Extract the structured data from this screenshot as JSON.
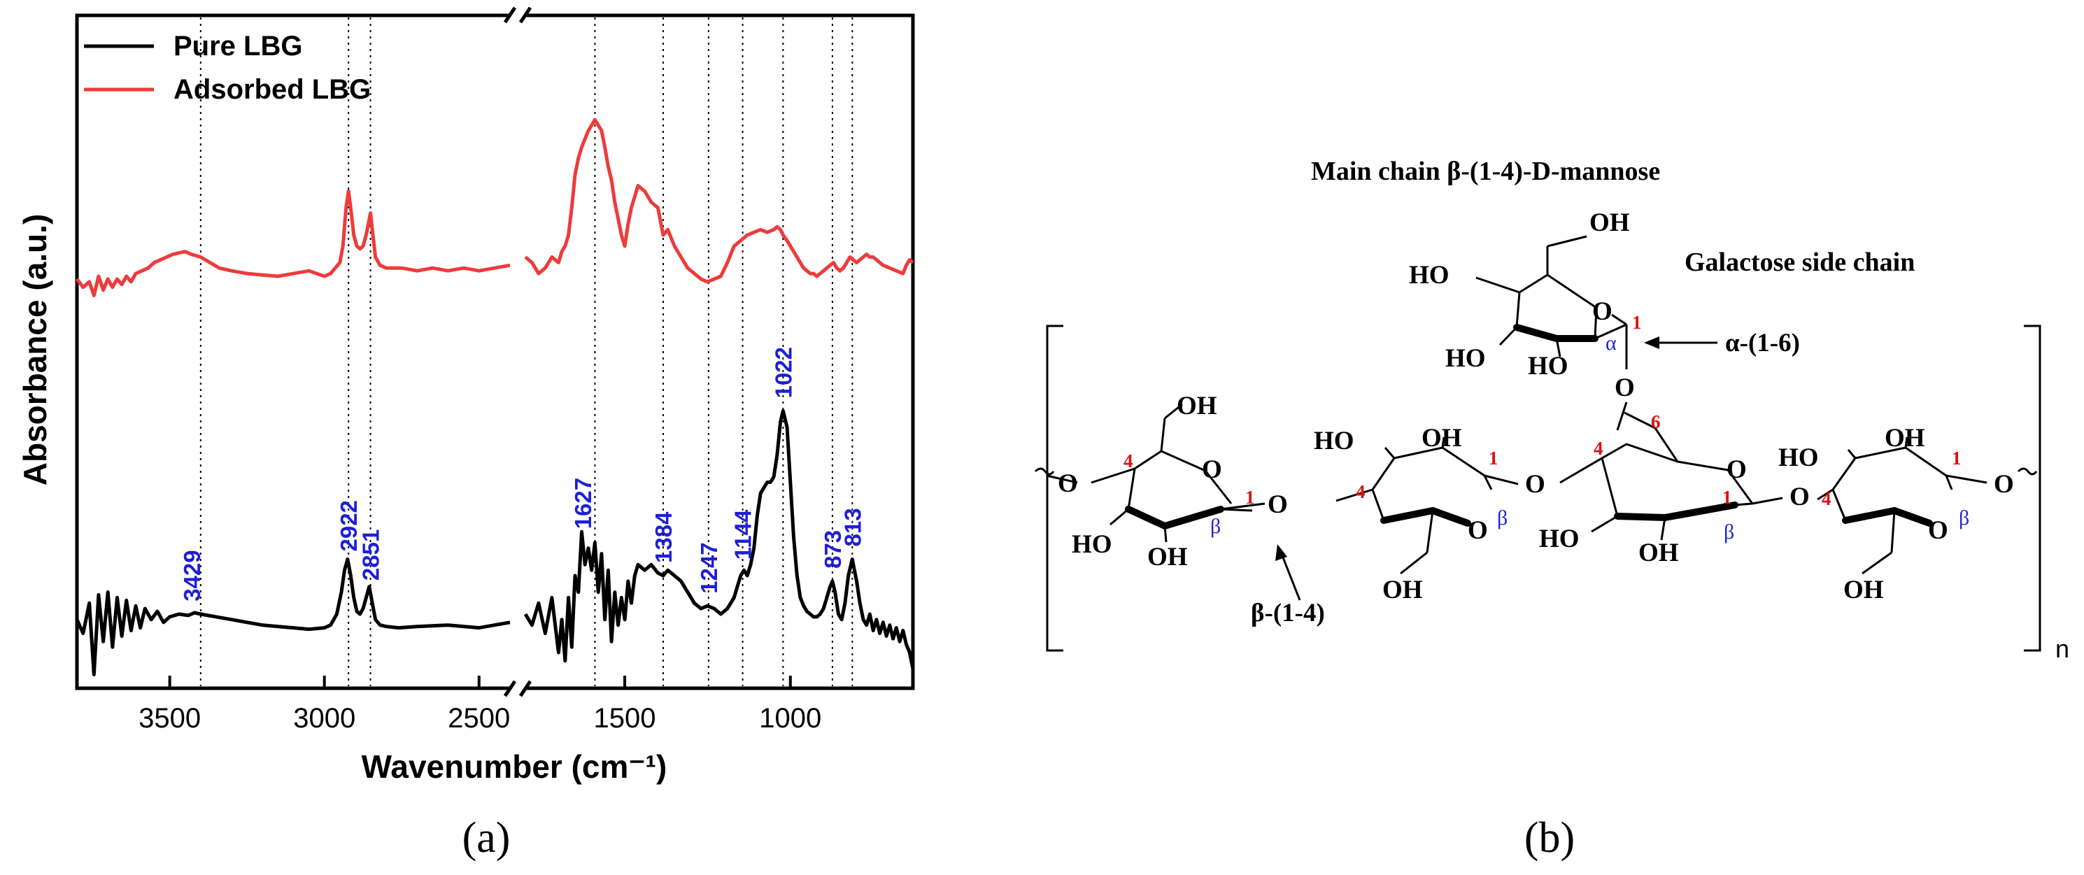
{
  "chart_data": {
    "type": "line",
    "title": "",
    "xlabel": "Wavenumber (cm⁻¹)",
    "ylabel": "Absorbance (a.u.)",
    "xlim": [
      3800,
      630
    ],
    "axis_break": [
      2400,
      1800
    ],
    "xticks": [
      {
        "value": 3500,
        "label": "3500"
      },
      {
        "value": 3000,
        "label": "3000"
      },
      {
        "value": 2500,
        "label": "2500"
      },
      {
        "value": 1500,
        "label": "1500"
      },
      {
        "value": 1000,
        "label": "1000"
      }
    ],
    "legend": {
      "position": "top-left",
      "items": [
        "Pure LBG",
        "Adsorbed LBG"
      ]
    },
    "colors": {
      "pure": "#000000",
      "adsorbed": "#ee3b3b",
      "peak_label": "#1f1fd6"
    },
    "reference_lines": [
      3400,
      2922,
      2851,
      1590,
      1384,
      1247,
      1144,
      1022,
      873,
      813
    ],
    "peaks": [
      {
        "x": 3429,
        "label": "3429"
      },
      {
        "x": 2922,
        "label": "2922"
      },
      {
        "x": 2851,
        "label": "2851"
      },
      {
        "x": 1627,
        "label": "1627"
      },
      {
        "x": 1384,
        "label": "1384"
      },
      {
        "x": 1247,
        "label": "1247"
      },
      {
        "x": 1144,
        "label": "1144"
      },
      {
        "x": 1022,
        "label": "1022"
      },
      {
        "x": 873,
        "label": "873"
      },
      {
        "x": 813,
        "label": "813"
      }
    ],
    "series": [
      {
        "name": "Pure LBG",
        "color": "#000000",
        "segments": [
          {
            "x": [
              3800,
              3780,
              3760,
              3745,
              3730,
              3715,
              3700,
              3685,
              3670,
              3655,
              3640,
              3625,
              3610,
              3595,
              3580,
              3560,
              3540,
              3520,
              3500,
              3470,
              3440,
              3420,
              3400,
              3350,
              3300,
              3250,
              3200,
              3150,
              3100,
              3050,
              3000,
              2980,
              2960,
              2945,
              2935,
              2925,
              2915,
              2905,
              2895,
              2885,
              2875,
              2865,
              2855,
              2845,
              2835,
              2820,
              2800,
              2760,
              2700,
              2600,
              2500,
              2400
            ],
            "y": [
              0.2,
              0.15,
              0.26,
              0.0,
              0.29,
              0.12,
              0.3,
              0.1,
              0.28,
              0.14,
              0.27,
              0.16,
              0.25,
              0.17,
              0.24,
              0.2,
              0.23,
              0.19,
              0.21,
              0.22,
              0.215,
              0.225,
              0.22,
              0.21,
              0.2,
              0.19,
              0.18,
              0.175,
              0.17,
              0.165,
              0.17,
              0.18,
              0.22,
              0.3,
              0.38,
              0.42,
              0.36,
              0.28,
              0.23,
              0.22,
              0.24,
              0.28,
              0.32,
              0.26,
              0.2,
              0.18,
              0.175,
              0.17,
              0.175,
              0.18,
              0.17,
              0.19
            ]
          },
          {
            "x": [
              1800,
              1780,
              1760,
              1740,
              1720,
              1700,
              1690,
              1680,
              1670,
              1660,
              1650,
              1640,
              1630,
              1620,
              1610,
              1600,
              1590,
              1580,
              1570,
              1560,
              1550,
              1540,
              1530,
              1520,
              1510,
              1500,
              1490,
              1480,
              1470,
              1460,
              1440,
              1420,
              1400,
              1384,
              1370,
              1350,
              1330,
              1310,
              1290,
              1270,
              1250,
              1230,
              1210,
              1190,
              1170,
              1160,
              1150,
              1140,
              1130,
              1120,
              1110,
              1100,
              1090,
              1080,
              1070,
              1060,
              1050,
              1040,
              1030,
              1022,
              1010,
              1000,
              990,
              980,
              970,
              960,
              950,
              940,
              930,
              920,
              910,
              900,
              890,
              880,
              873,
              865,
              855,
              845,
              835,
              825,
              813,
              800,
              790,
              780,
              770,
              760,
              750,
              740,
              730,
              720,
              710,
              700,
              690,
              680,
              670,
              660,
              650,
              640,
              630
            ],
            "y": [
              0.22,
              0.18,
              0.26,
              0.15,
              0.28,
              0.08,
              0.2,
              0.05,
              0.28,
              0.1,
              0.36,
              0.3,
              0.52,
              0.4,
              0.46,
              0.38,
              0.48,
              0.3,
              0.44,
              0.2,
              0.38,
              0.12,
              0.3,
              0.18,
              0.28,
              0.2,
              0.34,
              0.26,
              0.36,
              0.4,
              0.38,
              0.4,
              0.37,
              0.36,
              0.38,
              0.36,
              0.34,
              0.3,
              0.26,
              0.24,
              0.25,
              0.24,
              0.22,
              0.24,
              0.28,
              0.32,
              0.36,
              0.38,
              0.36,
              0.4,
              0.46,
              0.58,
              0.66,
              0.68,
              0.7,
              0.7,
              0.72,
              0.8,
              0.92,
              0.96,
              0.9,
              0.7,
              0.5,
              0.36,
              0.28,
              0.25,
              0.23,
              0.22,
              0.21,
              0.21,
              0.22,
              0.24,
              0.28,
              0.32,
              0.34,
              0.3,
              0.22,
              0.2,
              0.26,
              0.36,
              0.42,
              0.34,
              0.26,
              0.2,
              0.18,
              0.22,
              0.16,
              0.2,
              0.15,
              0.19,
              0.14,
              0.18,
              0.13,
              0.17,
              0.12,
              0.16,
              0.11,
              0.08,
              0.02
            ]
          }
        ]
      },
      {
        "name": "Adsorbed LBG",
        "color": "#ee3b3b",
        "segments": [
          {
            "x": [
              3800,
              3780,
              3760,
              3745,
              3730,
              3715,
              3700,
              3685,
              3670,
              3655,
              3640,
              3625,
              3610,
              3590,
              3570,
              3550,
              3530,
              3510,
              3490,
              3470,
              3450,
              3430,
              3400,
              3370,
              3340,
              3300,
              3250,
              3200,
              3150,
              3100,
              3050,
              3000,
              2980,
              2965,
              2950,
              2940,
              2930,
              2922,
              2915,
              2905,
              2895,
              2885,
              2875,
              2865,
              2858,
              2851,
              2845,
              2835,
              2820,
              2800,
              2750,
              2700,
              2650,
              2600,
              2550,
              2500,
              2450,
              2400
            ],
            "y": [
              1.44,
              1.41,
              1.43,
              1.38,
              1.45,
              1.4,
              1.44,
              1.41,
              1.44,
              1.42,
              1.45,
              1.43,
              1.46,
              1.47,
              1.48,
              1.5,
              1.51,
              1.52,
              1.53,
              1.535,
              1.54,
              1.53,
              1.52,
              1.5,
              1.48,
              1.47,
              1.46,
              1.455,
              1.45,
              1.46,
              1.47,
              1.45,
              1.46,
              1.48,
              1.5,
              1.56,
              1.7,
              1.76,
              1.7,
              1.6,
              1.56,
              1.55,
              1.56,
              1.6,
              1.64,
              1.68,
              1.62,
              1.52,
              1.49,
              1.48,
              1.48,
              1.47,
              1.48,
              1.47,
              1.48,
              1.47,
              1.48,
              1.49
            ]
          },
          {
            "x": [
              1800,
              1780,
              1760,
              1740,
              1720,
              1700,
              1690,
              1680,
              1670,
              1660,
              1650,
              1640,
              1630,
              1620,
              1610,
              1600,
              1590,
              1580,
              1570,
              1560,
              1550,
              1540,
              1530,
              1520,
              1510,
              1500,
              1490,
              1480,
              1470,
              1460,
              1440,
              1420,
              1400,
              1384,
              1370,
              1350,
              1330,
              1310,
              1290,
              1270,
              1250,
              1230,
              1210,
              1190,
              1170,
              1150,
              1130,
              1110,
              1090,
              1070,
              1050,
              1040,
              1030,
              1022,
              1010,
              1000,
              990,
              980,
              970,
              960,
              950,
              940,
              930,
              920,
              910,
              900,
              890,
              880,
              870,
              860,
              850,
              840,
              830,
              820,
              810,
              800,
              790,
              780,
              770,
              760,
              750,
              740,
              730,
              720,
              700,
              680,
              660,
              650,
              640,
              630
            ],
            "y": [
              1.52,
              1.5,
              1.46,
              1.48,
              1.52,
              1.5,
              1.54,
              1.56,
              1.6,
              1.7,
              1.82,
              1.88,
              1.92,
              1.95,
              1.98,
              2.0,
              2.02,
              2.0,
              1.98,
              1.92,
              1.85,
              1.8,
              1.72,
              1.66,
              1.6,
              1.56,
              1.64,
              1.7,
              1.74,
              1.78,
              1.76,
              1.72,
              1.7,
              1.6,
              1.62,
              1.56,
              1.52,
              1.48,
              1.46,
              1.44,
              1.43,
              1.44,
              1.45,
              1.5,
              1.56,
              1.58,
              1.6,
              1.61,
              1.62,
              1.61,
              1.62,
              1.63,
              1.62,
              1.6,
              1.58,
              1.56,
              1.54,
              1.52,
              1.5,
              1.48,
              1.47,
              1.46,
              1.46,
              1.45,
              1.46,
              1.47,
              1.48,
              1.49,
              1.5,
              1.48,
              1.47,
              1.48,
              1.5,
              1.52,
              1.51,
              1.5,
              1.51,
              1.52,
              1.53,
              1.52,
              1.52,
              1.51,
              1.5,
              1.49,
              1.48,
              1.47,
              1.46,
              1.49,
              1.51,
              1.5
            ]
          }
        ]
      }
    ]
  },
  "panels": {
    "a": "(a)",
    "b": "(b)"
  },
  "structure": {
    "title": "Main chain β-(1-4)-D-mannose",
    "side_chain_label": "Galactose side chain",
    "linkage_alpha": "α-(1-6)",
    "linkage_beta": "β-(1-4)",
    "repeat_subscript": "n",
    "groups": {
      "oh": "OH",
      "ho": "HO",
      "o": "O"
    },
    "positions": {
      "c1": "1",
      "c4": "4",
      "c6": "6"
    },
    "anomers": {
      "alpha": "α",
      "beta": "β"
    }
  }
}
